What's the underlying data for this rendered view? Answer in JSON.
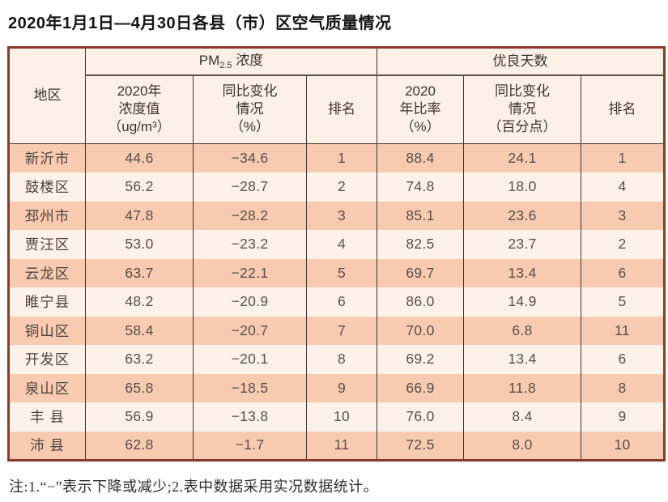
{
  "page": {
    "title": "2020年1月1日—4月30日各县（市）区空气质量情况",
    "note": "注:1.“−”表示下降或减少;2.表中数据采用实况数据统计。"
  },
  "table": {
    "region_header": "地区",
    "pm_group": {
      "pm": "PM",
      "sub": "2.5",
      "label": " 浓度"
    },
    "good_days_header": "优良天数",
    "sub_headers": {
      "pm_value": "2020年\n浓度值\n（ug/m³）",
      "pm_change": "同比变化\n情况\n（%）",
      "pm_rank": "排名",
      "ratio": "2020\n年比率\n（%）",
      "ratio_change": "同比变化\n情况\n（百分点）",
      "ratio_rank": "排名"
    },
    "row_keys": [
      "region",
      "pm_value",
      "pm_change",
      "pm_rank",
      "ratio",
      "ratio_change",
      "ratio_rank"
    ],
    "rows": [
      {
        "region": "新沂市",
        "pm_value": "44.6",
        "pm_change": "−34.6",
        "pm_rank": "1",
        "ratio": "88.4",
        "ratio_change": "24.1",
        "ratio_rank": "1"
      },
      {
        "region": "鼓楼区",
        "pm_value": "56.2",
        "pm_change": "−28.7",
        "pm_rank": "2",
        "ratio": "74.8",
        "ratio_change": "18.0",
        "ratio_rank": "4"
      },
      {
        "region": "邳州市",
        "pm_value": "47.8",
        "pm_change": "−28.2",
        "pm_rank": "3",
        "ratio": "85.1",
        "ratio_change": "23.6",
        "ratio_rank": "3"
      },
      {
        "region": "贾汪区",
        "pm_value": "53.0",
        "pm_change": "−23.2",
        "pm_rank": "4",
        "ratio": "82.5",
        "ratio_change": "23.7",
        "ratio_rank": "2"
      },
      {
        "region": "云龙区",
        "pm_value": "63.7",
        "pm_change": "−22.1",
        "pm_rank": "5",
        "ratio": "69.7",
        "ratio_change": "13.4",
        "ratio_rank": "6"
      },
      {
        "region": "睢宁县",
        "pm_value": "48.2",
        "pm_change": "−20.9",
        "pm_rank": "6",
        "ratio": "86.0",
        "ratio_change": "14.9",
        "ratio_rank": "5"
      },
      {
        "region": "铜山区",
        "pm_value": "58.4",
        "pm_change": "−20.7",
        "pm_rank": "7",
        "ratio": "70.0",
        "ratio_change": "6.8",
        "ratio_rank": "11"
      },
      {
        "region": "开发区",
        "pm_value": "63.2",
        "pm_change": "−20.1",
        "pm_rank": "8",
        "ratio": "69.2",
        "ratio_change": "13.4",
        "ratio_rank": "6"
      },
      {
        "region": "泉山区",
        "pm_value": "65.8",
        "pm_change": "−18.5",
        "pm_rank": "9",
        "ratio": "66.9",
        "ratio_change": "11.8",
        "ratio_rank": "8"
      },
      {
        "region": "丰 县",
        "pm_value": "56.9",
        "pm_change": "−13.8",
        "pm_rank": "10",
        "ratio": "76.0",
        "ratio_change": "8.4",
        "ratio_rank": "9"
      },
      {
        "region": "沛 县",
        "pm_value": "62.8",
        "pm_change": "−1.7",
        "pm_rank": "11",
        "ratio": "72.5",
        "ratio_change": "8.0",
        "ratio_rank": "10"
      }
    ]
  },
  "colors": {
    "outer_border": "#8a3a28",
    "inner_line": "#3b3734",
    "header_bg": "#fcf0e7",
    "row_salmon": "#f8cab0",
    "row_cream": "#fdf2e9"
  }
}
